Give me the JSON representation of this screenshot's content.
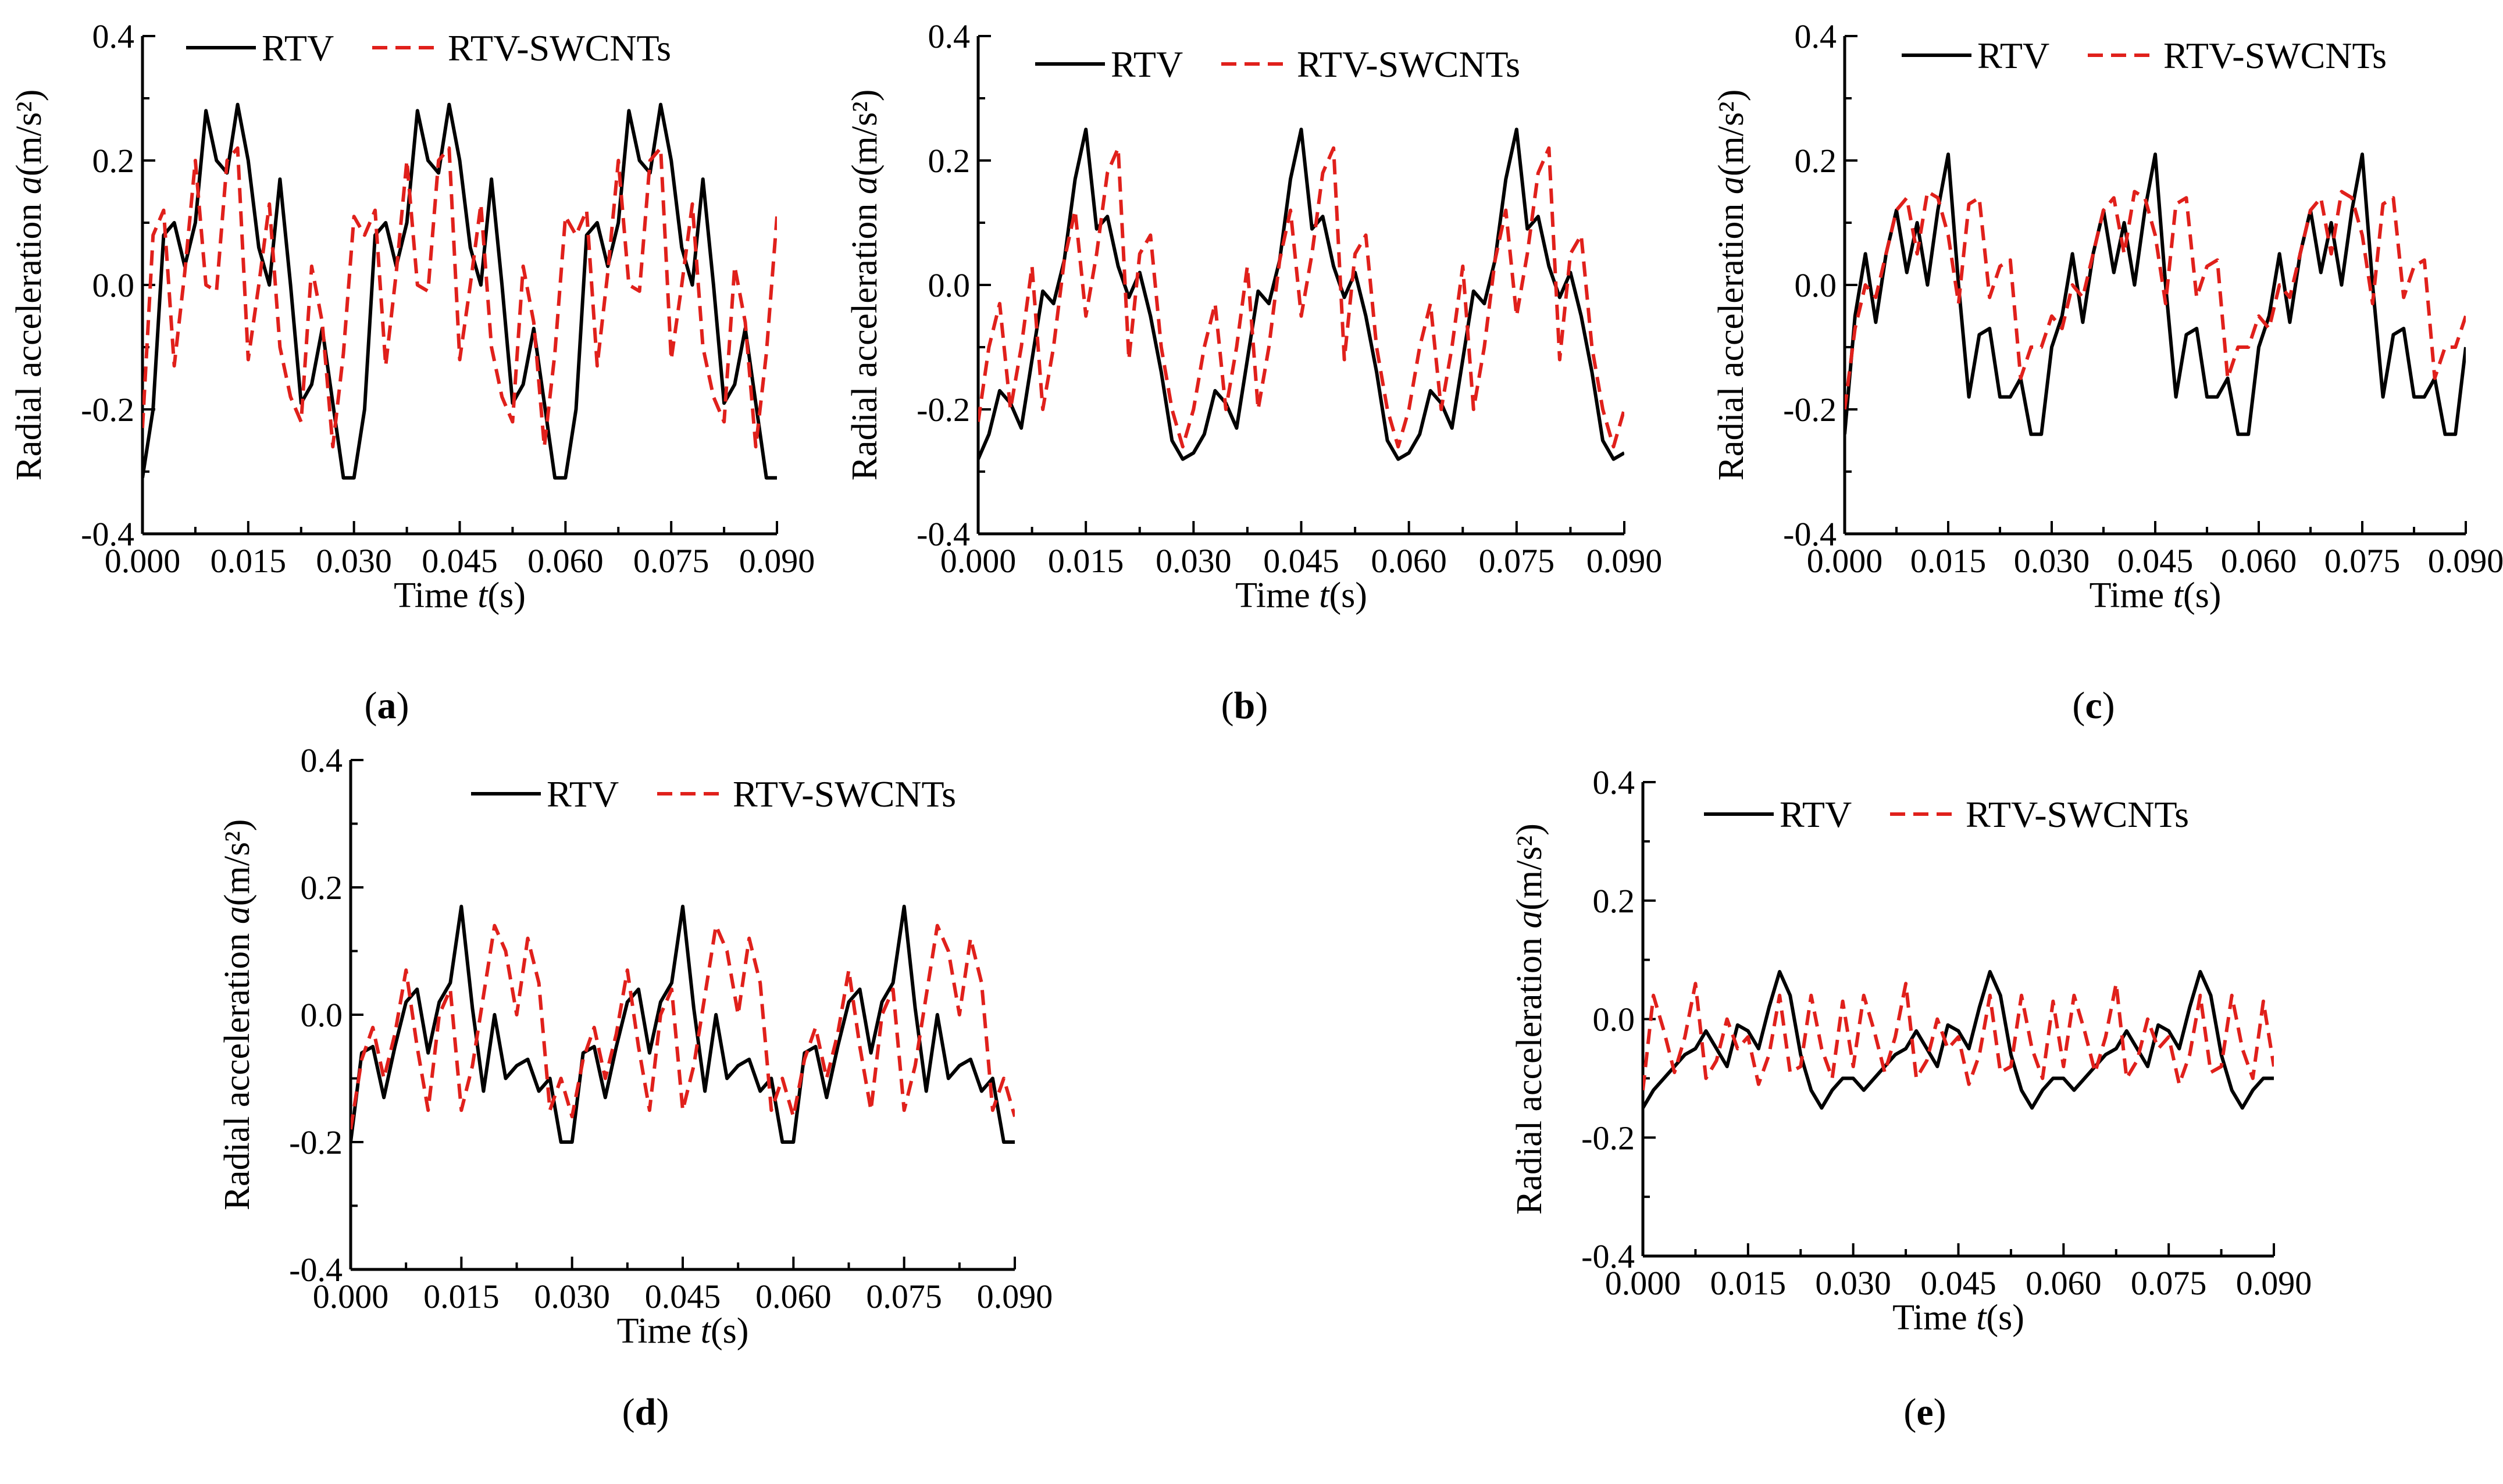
{
  "chart_data": [
    {
      "id": "a",
      "panel_label": "a",
      "type": "line",
      "xlabel": "Time",
      "xlabel_symbol": "t",
      "xlabel_unit": "(s)",
      "ylabel": "Radial acceleration",
      "ylabel_symbol": "a",
      "ylabel_unit": "(m/s²)",
      "xlim": [
        0,
        0.09
      ],
      "ylim": [
        -0.4,
        0.4
      ],
      "x_ticks": [
        "0.000",
        "0.015",
        "0.030",
        "0.045",
        "0.060",
        "0.075",
        "0.090"
      ],
      "y_ticks": [
        "-0.4",
        "-0.2",
        "0.0",
        "0.2",
        "0.4"
      ],
      "legend_position": "top",
      "series": [
        {
          "name": "RTV",
          "color": "#000000",
          "style": "solid",
          "x": [
            0,
            0.0015,
            0.003,
            0.0045,
            0.006,
            0.0075,
            0.009,
            0.0105,
            0.012,
            0.0135,
            0.015,
            0.0165,
            0.018,
            0.0195,
            0.021,
            0.0225,
            0.024,
            0.0255,
            0.027,
            0.0285,
            0.03
          ],
          "y": [
            -0.31,
            -0.2,
            0.08,
            0.1,
            0.03,
            0.1,
            0.28,
            0.2,
            0.18,
            0.29,
            0.2,
            0.06,
            0.0,
            0.17,
            0.0,
            -0.19,
            -0.16,
            -0.07,
            -0.19,
            -0.31,
            -0.31
          ]
        },
        {
          "name": "RTV-SWCNTs",
          "color": "#e0201b",
          "style": "dashed",
          "x": [
            0,
            0.0015,
            0.003,
            0.0045,
            0.006,
            0.0075,
            0.009,
            0.0105,
            0.012,
            0.0135,
            0.015,
            0.0165,
            0.018,
            0.0195,
            0.021,
            0.0225,
            0.024,
            0.0255,
            0.027,
            0.0285,
            0.03
          ],
          "y": [
            -0.23,
            0.08,
            0.12,
            -0.13,
            0.02,
            0.2,
            0.0,
            -0.01,
            0.2,
            0.22,
            -0.12,
            0.0,
            0.13,
            -0.1,
            -0.18,
            -0.22,
            0.03,
            -0.06,
            -0.26,
            -0.11,
            0.11
          ]
        }
      ]
    },
    {
      "id": "b",
      "panel_label": "b",
      "type": "line",
      "xlabel": "Time",
      "xlabel_symbol": "t",
      "xlabel_unit": "(s)",
      "ylabel": "Radial acceleration",
      "ylabel_symbol": "a",
      "ylabel_unit": "(m/s²)",
      "xlim": [
        0,
        0.09
      ],
      "ylim": [
        -0.4,
        0.4
      ],
      "x_ticks": [
        "0.000",
        "0.015",
        "0.030",
        "0.045",
        "0.060",
        "0.075",
        "0.090"
      ],
      "y_ticks": [
        "-0.4",
        "-0.2",
        "0.0",
        "0.2",
        "0.4"
      ],
      "legend_position": "top",
      "series": [
        {
          "name": "RTV",
          "color": "#000000",
          "style": "solid",
          "x": [
            0,
            0.0015,
            0.003,
            0.0045,
            0.006,
            0.0075,
            0.009,
            0.0105,
            0.012,
            0.0135,
            0.015,
            0.0165,
            0.018,
            0.0195,
            0.021,
            0.0225,
            0.024,
            0.0255,
            0.027,
            0.0285,
            0.03
          ],
          "y": [
            -0.28,
            -0.24,
            -0.17,
            -0.19,
            -0.23,
            -0.12,
            -0.01,
            -0.03,
            0.04,
            0.17,
            0.25,
            0.09,
            0.11,
            0.03,
            -0.02,
            0.02,
            -0.05,
            -0.14,
            -0.25,
            -0.28,
            -0.27
          ]
        },
        {
          "name": "RTV-SWCNTs",
          "color": "#e0201b",
          "style": "dashed",
          "x": [
            0,
            0.0015,
            0.003,
            0.0045,
            0.006,
            0.0075,
            0.009,
            0.0105,
            0.012,
            0.0135,
            0.015,
            0.0165,
            0.018,
            0.0195,
            0.021,
            0.0225,
            0.024,
            0.0255,
            0.027,
            0.0285,
            0.03
          ],
          "y": [
            -0.22,
            -0.1,
            -0.03,
            -0.2,
            -0.1,
            0.03,
            -0.2,
            -0.1,
            0.04,
            0.12,
            -0.05,
            0.05,
            0.18,
            0.22,
            -0.12,
            0.05,
            0.08,
            -0.1,
            -0.2,
            -0.26,
            -0.2
          ]
        }
      ]
    },
    {
      "id": "c",
      "panel_label": "c",
      "type": "line",
      "xlabel": "Time",
      "xlabel_symbol": "t",
      "xlabel_unit": "(s)",
      "ylabel": "Radial acceleration",
      "ylabel_symbol": "a",
      "ylabel_unit": "(m/s²)",
      "xlim": [
        0,
        0.09
      ],
      "ylim": [
        -0.4,
        0.4
      ],
      "x_ticks": [
        "0.000",
        "0.015",
        "0.030",
        "0.045",
        "0.060",
        "0.075",
        "0.090"
      ],
      "y_ticks": [
        "-0.4",
        "-0.2",
        "0.0",
        "0.2",
        "0.4"
      ],
      "legend_position": "top",
      "series": [
        {
          "name": "RTV",
          "color": "#000000",
          "style": "solid",
          "x": [
            0,
            0.0015,
            0.003,
            0.0045,
            0.006,
            0.0075,
            0.009,
            0.0105,
            0.012,
            0.0135,
            0.015,
            0.0165,
            0.018,
            0.0195,
            0.021,
            0.0225,
            0.024,
            0.0255,
            0.027,
            0.0285,
            0.03
          ],
          "y": [
            -0.24,
            -0.05,
            0.05,
            -0.06,
            0.05,
            0.12,
            0.02,
            0.1,
            0.0,
            0.12,
            0.21,
            0.0,
            -0.18,
            -0.08,
            -0.07,
            -0.18,
            -0.18,
            -0.15,
            -0.24,
            -0.24,
            -0.1
          ]
        },
        {
          "name": "RTV-SWCNTs",
          "color": "#e0201b",
          "style": "dashed",
          "x": [
            0,
            0.0015,
            0.003,
            0.0045,
            0.006,
            0.0075,
            0.009,
            0.0105,
            0.012,
            0.0135,
            0.015,
            0.0165,
            0.018,
            0.0195,
            0.021,
            0.0225,
            0.024,
            0.0255,
            0.027,
            0.0285,
            0.03
          ],
          "y": [
            -0.2,
            -0.07,
            0.0,
            -0.02,
            0.05,
            0.12,
            0.14,
            0.05,
            0.15,
            0.14,
            0.08,
            -0.03,
            0.13,
            0.14,
            -0.02,
            0.03,
            0.04,
            -0.15,
            -0.1,
            -0.1,
            -0.05
          ]
        }
      ]
    },
    {
      "id": "d",
      "panel_label": "d",
      "type": "line",
      "xlabel": "Time",
      "xlabel_symbol": "t",
      "xlabel_unit": "(s)",
      "ylabel": "Radial acceleration",
      "ylabel_symbol": "a",
      "ylabel_unit": "(m/s²)",
      "xlim": [
        0,
        0.09
      ],
      "ylim": [
        -0.4,
        0.4
      ],
      "x_ticks": [
        "0.000",
        "0.015",
        "0.030",
        "0.045",
        "0.060",
        "0.075",
        "0.090"
      ],
      "y_ticks": [
        "-0.4",
        "-0.2",
        "0.0",
        "0.2",
        "0.4"
      ],
      "legend_position": "top",
      "series": [
        {
          "name": "RTV",
          "color": "#000000",
          "style": "solid",
          "x": [
            0,
            0.0015,
            0.003,
            0.0045,
            0.006,
            0.0075,
            0.009,
            0.0105,
            0.012,
            0.0135,
            0.015,
            0.0165,
            0.018,
            0.0195,
            0.021,
            0.0225,
            0.024,
            0.0255,
            0.027,
            0.0285,
            0.03
          ],
          "y": [
            -0.2,
            -0.06,
            -0.05,
            -0.13,
            -0.05,
            0.02,
            0.04,
            -0.06,
            0.02,
            0.05,
            0.17,
            0.01,
            -0.12,
            0.0,
            -0.1,
            -0.08,
            -0.07,
            -0.12,
            -0.1,
            -0.2,
            -0.2
          ]
        },
        {
          "name": "RTV-SWCNTs",
          "color": "#e0201b",
          "style": "dashed",
          "x": [
            0,
            0.0015,
            0.003,
            0.0045,
            0.006,
            0.0075,
            0.009,
            0.0105,
            0.012,
            0.0135,
            0.015,
            0.0165,
            0.018,
            0.0195,
            0.021,
            0.0225,
            0.024,
            0.0255,
            0.027,
            0.0285,
            0.03
          ],
          "y": [
            -0.18,
            -0.07,
            -0.02,
            -0.1,
            -0.03,
            0.07,
            -0.05,
            -0.15,
            0.0,
            0.04,
            -0.15,
            -0.08,
            0.03,
            0.14,
            0.1,
            0.0,
            0.12,
            0.05,
            -0.15,
            -0.1,
            -0.16
          ]
        }
      ]
    },
    {
      "id": "e",
      "panel_label": "e",
      "type": "line",
      "xlabel": "Time",
      "xlabel_symbol": "t",
      "xlabel_unit": "(s)",
      "ylabel": "Radial acceleration",
      "ylabel_symbol": "a",
      "ylabel_unit": "(m/s²)",
      "xlim": [
        0,
        0.09
      ],
      "ylim": [
        -0.4,
        0.4
      ],
      "x_ticks": [
        "0.000",
        "0.015",
        "0.030",
        "0.045",
        "0.060",
        "0.075",
        "0.090"
      ],
      "y_ticks": [
        "-0.4",
        "-0.2",
        "0.0",
        "0.2",
        "0.4"
      ],
      "legend_position": "top",
      "series": [
        {
          "name": "RTV",
          "color": "#000000",
          "style": "solid",
          "x": [
            0,
            0.0015,
            0.003,
            0.0045,
            0.006,
            0.0075,
            0.009,
            0.0105,
            0.012,
            0.0135,
            0.015,
            0.0165,
            0.018,
            0.0195,
            0.021,
            0.0225,
            0.024,
            0.0255,
            0.027,
            0.0285,
            0.03
          ],
          "y": [
            -0.15,
            -0.12,
            -0.1,
            -0.08,
            -0.06,
            -0.05,
            -0.02,
            -0.05,
            -0.08,
            -0.01,
            -0.02,
            -0.05,
            0.02,
            0.08,
            0.04,
            -0.06,
            -0.12,
            -0.15,
            -0.12,
            -0.1,
            -0.1
          ]
        },
        {
          "name": "RTV-SWCNTs",
          "color": "#e0201b",
          "style": "dashed",
          "x": [
            0,
            0.0015,
            0.003,
            0.0045,
            0.006,
            0.0075,
            0.009,
            0.0105,
            0.012,
            0.0135,
            0.015,
            0.0165,
            0.018,
            0.0195,
            0.021,
            0.0225,
            0.024,
            0.0255,
            0.027,
            0.0285,
            0.03
          ],
          "y": [
            -0.12,
            0.04,
            -0.02,
            -0.09,
            -0.03,
            0.06,
            -0.1,
            -0.07,
            0.0,
            -0.05,
            -0.03,
            -0.11,
            -0.06,
            0.04,
            -0.09,
            -0.08,
            0.04,
            -0.05,
            -0.1,
            0.03,
            -0.08
          ]
        }
      ]
    }
  ]
}
